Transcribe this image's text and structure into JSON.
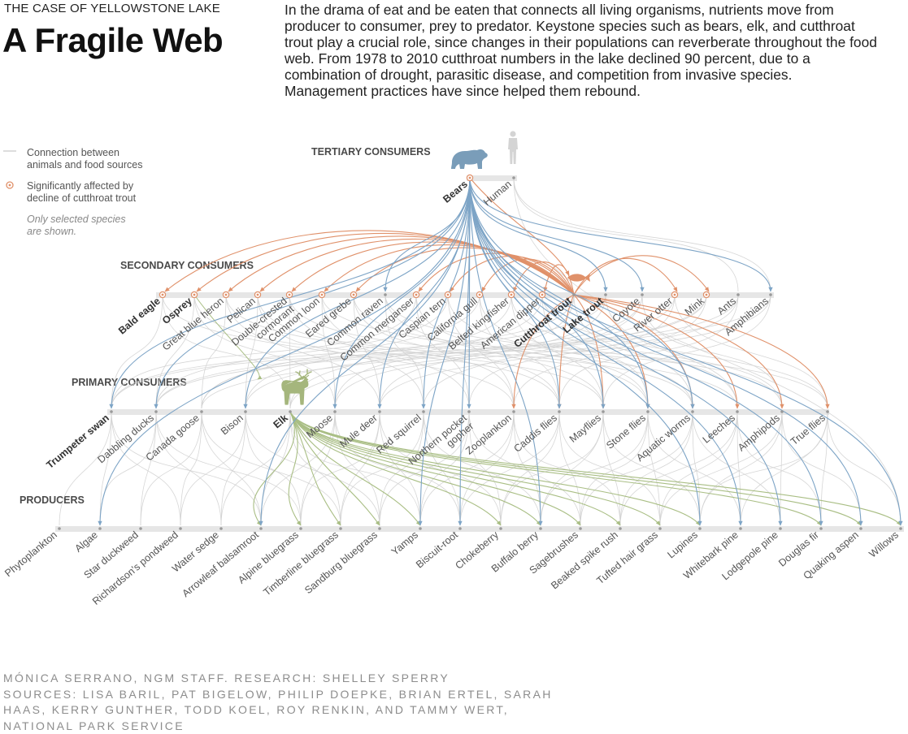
{
  "header": {
    "kicker": "THE CASE OF YELLOWSTONE LAKE",
    "title": "A Fragile Web",
    "intro": "In the drama of eat and be eaten that connects all living organisms, nutrients move from producer to consumer, prey to predator. Keystone species such as bears, elk, and cutthroat trout play a crucial role, since changes in their populations can reverberate throughout the food web. From 1978 to 2010 cutthroat numbers in the lake declined 90 percent, due to a combination of drought, parasitic disease, and competition from invasive species. Management practices have since helped them rebound."
  },
  "legend": {
    "connection_line1": "Connection between",
    "connection_line2": "animals and food sources",
    "affected_line1": "Significantly affected by",
    "affected_line2": "decline of cutthroat trout",
    "note_line1": "Only selected species",
    "note_line2": "are shown."
  },
  "colors": {
    "bear_links": "#7da4c6",
    "trout_links": "#e0916a",
    "elk_links": "#a9be84",
    "gray_links": "#d2d2d2",
    "bar": "#e6e6e6"
  },
  "icons": [
    "bear-icon",
    "human-icon",
    "elk-icon",
    "fish-icon"
  ],
  "levels": {
    "tertiary": "TERTIARY CONSUMERS",
    "secondary": "SECONDARY CONSUMERS",
    "primary": "PRIMARY CONSUMERS",
    "producers": "PRODUCERS"
  },
  "species": {
    "tertiary": [
      {
        "label": "Bears",
        "bold": true,
        "affected": true
      },
      {
        "label": "Human",
        "bold": false,
        "affected": false
      }
    ],
    "secondary": [
      {
        "label": "Bald eagle",
        "bold": true,
        "affected": true
      },
      {
        "label": "Osprey",
        "bold": true,
        "affected": true
      },
      {
        "label": "Great blue heron",
        "affected": true
      },
      {
        "label": "Pelican",
        "affected": true
      },
      {
        "label": "Double-crested cormorant",
        "lines": [
          "Double-crested",
          "cormorant"
        ],
        "affected": true
      },
      {
        "label": "Common loon",
        "affected": true
      },
      {
        "label": "Eared grebe",
        "affected": true
      },
      {
        "label": "Common raven",
        "affected": false
      },
      {
        "label": "Common merganser",
        "affected": true
      },
      {
        "label": "Caspian tern",
        "affected": true
      },
      {
        "label": "California gull",
        "affected": true
      },
      {
        "label": "Belted kingfisher",
        "affected": true
      },
      {
        "label": "American dipper",
        "affected": true
      },
      {
        "label": "Cutthroat trout",
        "bold": true,
        "affected": false
      },
      {
        "label": "Lake trout",
        "bold": true,
        "affected": false
      },
      {
        "label": "Coyote",
        "affected": false
      },
      {
        "label": "River otter",
        "affected": true
      },
      {
        "label": "Mink",
        "affected": true
      },
      {
        "label": "Ants",
        "affected": false
      },
      {
        "label": "Amphibians",
        "affected": false
      }
    ],
    "primary": [
      {
        "label": "Trumpeter swan",
        "bold": true
      },
      {
        "label": "Dabbling ducks"
      },
      {
        "label": "Canada goose"
      },
      {
        "label": "Bison"
      },
      {
        "label": "Elk",
        "bold": true
      },
      {
        "label": "Moose"
      },
      {
        "label": "Mule deer"
      },
      {
        "label": "Red squirrel"
      },
      {
        "label": "Northern pocket gopher",
        "lines": [
          "Northern pocket",
          "gopher"
        ]
      },
      {
        "label": "Zooplankton"
      },
      {
        "label": "Caddis flies"
      },
      {
        "label": "Mayflies"
      },
      {
        "label": "Stone flies"
      },
      {
        "label": "Aquatic worms"
      },
      {
        "label": "Leeches"
      },
      {
        "label": "Amphipods"
      },
      {
        "label": "True flies"
      }
    ],
    "producers": [
      {
        "label": "Phytoplankton"
      },
      {
        "label": "Algae"
      },
      {
        "label": "Star duckweed"
      },
      {
        "label": "Richardson's pondweed"
      },
      {
        "label": "Water sedge"
      },
      {
        "label": "Arrowleaf balsamroot"
      },
      {
        "label": "Alpine bluegrass"
      },
      {
        "label": "Timberline bluegrass"
      },
      {
        "label": "Sandburg bluegrass"
      },
      {
        "label": "Yamps"
      },
      {
        "label": "Biscuit-root"
      },
      {
        "label": "Chokeberry"
      },
      {
        "label": "Buffalo berry"
      },
      {
        "label": "Sagebrushes"
      },
      {
        "label": "Beaked spike rush"
      },
      {
        "label": "Tufted hair grass"
      },
      {
        "label": "Lupines"
      },
      {
        "label": "Whitebark pine"
      },
      {
        "label": "Lodgepole pine"
      },
      {
        "label": "Douglas fir"
      },
      {
        "label": "Quaking aspen"
      },
      {
        "label": "Willows"
      }
    ]
  },
  "credits": {
    "line1": "MÓNICA SERRANO, NGM STAFF. RESEARCH: SHELLEY SPERRY",
    "line2": "SOURCES: LISA BARIL, PAT BIGELOW, PHILIP DOEPKE, BRIAN ERTEL, SARAH",
    "line3": "HAAS, KERRY GUNTHER, TODD KOEL, ROY RENKIN, AND TAMMY WERT,",
    "line4": "NATIONAL PARK SERVICE"
  }
}
